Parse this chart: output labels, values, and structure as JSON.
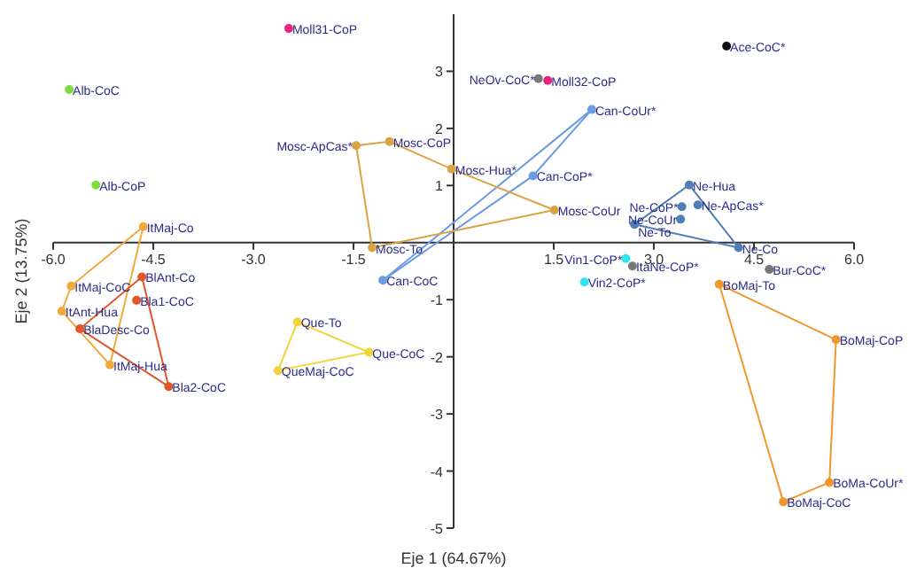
{
  "chart_data": {
    "type": "scatter",
    "xlabel": "Eje 1 (64.67%)",
    "ylabel": "Eje 2 (13.75%)",
    "xlim": [
      -6,
      6
    ],
    "ylim": [
      -5,
      4
    ],
    "xticks": [
      {
        "value": -6,
        "label": "-6.0"
      },
      {
        "value": -4.5,
        "label": "-4.5"
      },
      {
        "value": -3,
        "label": "-3.0"
      },
      {
        "value": -1.5,
        "label": "-1.5"
      },
      {
        "value": 1.5,
        "label": "1.5"
      },
      {
        "value": 3,
        "label": "3.0"
      },
      {
        "value": 4.5,
        "label": "4.5"
      },
      {
        "value": 6,
        "label": "6.0"
      }
    ],
    "yticks": [
      -5,
      -4,
      -3,
      -2,
      -1,
      1,
      2,
      3
    ],
    "grid": false,
    "legend": false,
    "marker": "circle",
    "series": [
      {
        "type": "scatter",
        "color": "#7cdc3c",
        "x": [
          -5.76,
          -5.36
        ],
        "values": [
          2.68,
          1.01
        ]
      },
      {
        "type": "scatter",
        "color": "#e8247c",
        "x": [
          -2.47,
          1.41
        ],
        "values": [
          3.75,
          2.84
        ]
      },
      {
        "type": "scatter",
        "color": "#777777",
        "x": [
          1.27,
          2.68,
          4.73
        ],
        "values": [
          2.87,
          -0.41,
          -0.47
        ]
      },
      {
        "type": "scatter",
        "color": "#111111",
        "x": [
          4.09
        ],
        "values": [
          3.44
        ]
      },
      {
        "type": "scatter",
        "color": "#2ee6f0",
        "x": [
          2.58,
          1.96
        ],
        "values": [
          -0.28,
          -0.69
        ]
      },
      {
        "type": "scatter",
        "color": "#4f7fb5",
        "x": [
          3.42,
          3.66,
          3.4
        ],
        "values": [
          0.63,
          0.66,
          0.41
        ]
      },
      {
        "type": "line",
        "color": "#4f7fb5",
        "x": [
          2.71,
          3.53,
          4.27
        ],
        "values": [
          0.32,
          1.01,
          -0.09
        ]
      },
      {
        "type": "line",
        "color": "#6b9be0",
        "x": [
          -1.06,
          1.19,
          2.07
        ],
        "values": [
          -0.66,
          1.17,
          2.33
        ]
      },
      {
        "type": "line",
        "color": "#d9a441",
        "x": [
          -1.46,
          -0.96,
          -0.03,
          1.51,
          -1.22
        ],
        "values": [
          1.7,
          1.77,
          1.29,
          0.57,
          -0.09
        ]
      },
      {
        "type": "line",
        "color": "#f2a93b",
        "x": [
          -4.65,
          -5.73,
          -5.87,
          -5.15
        ],
        "values": [
          0.28,
          -0.76,
          -1.2,
          -2.14
        ]
      },
      {
        "type": "line",
        "color": "#e0572a",
        "x": [
          -4.67,
          -5.6,
          -4.27
        ],
        "values": [
          -0.6,
          -1.51,
          -2.52
        ]
      },
      {
        "type": "scatter",
        "color": "#e0572a",
        "x": [
          -4.75
        ],
        "values": [
          -1.01
        ]
      },
      {
        "type": "line",
        "color": "#f2d43a",
        "x": [
          -2.34,
          -1.27,
          -2.63
        ],
        "values": [
          -1.39,
          -1.92,
          -2.24
        ]
      },
      {
        "type": "line",
        "color": "#f0982e",
        "x": [
          3.98,
          5.73,
          5.63,
          4.94
        ],
        "values": [
          -0.73,
          -1.7,
          -4.2,
          -4.54
        ]
      }
    ],
    "annotations": [
      {
        "text": "Alb-CoC",
        "x": -5.76,
        "y": 2.68
      },
      {
        "text": "Alb-CoP",
        "x": -5.36,
        "y": 1.01
      },
      {
        "text": "Moll31-CoP",
        "x": -2.47,
        "y": 3.75
      },
      {
        "text": "Moll32-CoP",
        "x": 1.41,
        "y": 2.84
      },
      {
        "text": "NeOv-CoC*",
        "x": 1.27,
        "y": 2.87
      },
      {
        "text": "ItaNe-CoP*",
        "x": 2.68,
        "y": -0.41
      },
      {
        "text": "Bur-CoC*",
        "x": 4.73,
        "y": -0.47
      },
      {
        "text": "Ace-CoC*",
        "x": 4.09,
        "y": 3.44
      },
      {
        "text": "Vin1-CoP*",
        "x": 2.58,
        "y": -0.28
      },
      {
        "text": "Vin2-CoP*",
        "x": 1.96,
        "y": -0.69
      },
      {
        "text": "Ne-CoP*",
        "x": 3.42,
        "y": 0.63
      },
      {
        "text": "Ne-ApCas*",
        "x": 3.66,
        "y": 0.66
      },
      {
        "text": "Ne-CoUr",
        "x": 3.4,
        "y": 0.41
      },
      {
        "text": "Ne-To",
        "x": 2.71,
        "y": 0.32
      },
      {
        "text": "Ne-Hua",
        "x": 3.53,
        "y": 1.01
      },
      {
        "text": "Ne-Co",
        "x": 4.27,
        "y": -0.09
      },
      {
        "text": "Can-CoC",
        "x": -1.06,
        "y": -0.66
      },
      {
        "text": "Can-CoP*",
        "x": 1.19,
        "y": 1.17
      },
      {
        "text": "Can-CoUr*",
        "x": 2.07,
        "y": 2.33
      },
      {
        "text": "Mosc-ApCas*",
        "x": -1.46,
        "y": 1.7
      },
      {
        "text": "Mosc-CoP",
        "x": -0.96,
        "y": 1.77
      },
      {
        "text": "Mosc-Hua*",
        "x": -0.03,
        "y": 1.29
      },
      {
        "text": "Mosc-CoUr",
        "x": 1.51,
        "y": 0.57
      },
      {
        "text": "Mosc-To",
        "x": -1.22,
        "y": -0.09
      },
      {
        "text": "ItMaj-Co",
        "x": -4.65,
        "y": 0.28
      },
      {
        "text": "ItMaj-CoC",
        "x": -5.73,
        "y": -0.76
      },
      {
        "text": "ItAnt-Hua",
        "x": -5.87,
        "y": -1.2
      },
      {
        "text": "ItMaj-Hua",
        "x": -5.15,
        "y": -2.14
      },
      {
        "text": "BlAnt-Co",
        "x": -4.67,
        "y": -0.6
      },
      {
        "text": "BlaDesc-Co",
        "x": -5.6,
        "y": -1.51
      },
      {
        "text": "Bla2-CoC",
        "x": -4.27,
        "y": -2.52
      },
      {
        "text": "Bla1-CoC",
        "x": -4.75,
        "y": -1.01
      },
      {
        "text": "Que-To",
        "x": -2.34,
        "y": -1.39
      },
      {
        "text": "Que-CoC",
        "x": -1.27,
        "y": -1.92
      },
      {
        "text": "QueMaj-CoC",
        "x": -2.63,
        "y": -2.24
      },
      {
        "text": "BoMaj-To",
        "x": 3.98,
        "y": -0.73
      },
      {
        "text": "BoMaj-CoP",
        "x": 5.73,
        "y": -1.7
      },
      {
        "text": "BoMa-CoUr*",
        "x": 5.63,
        "y": -4.2
      },
      {
        "text": "BoMaj-CoC",
        "x": 4.94,
        "y": -4.54
      }
    ]
  }
}
